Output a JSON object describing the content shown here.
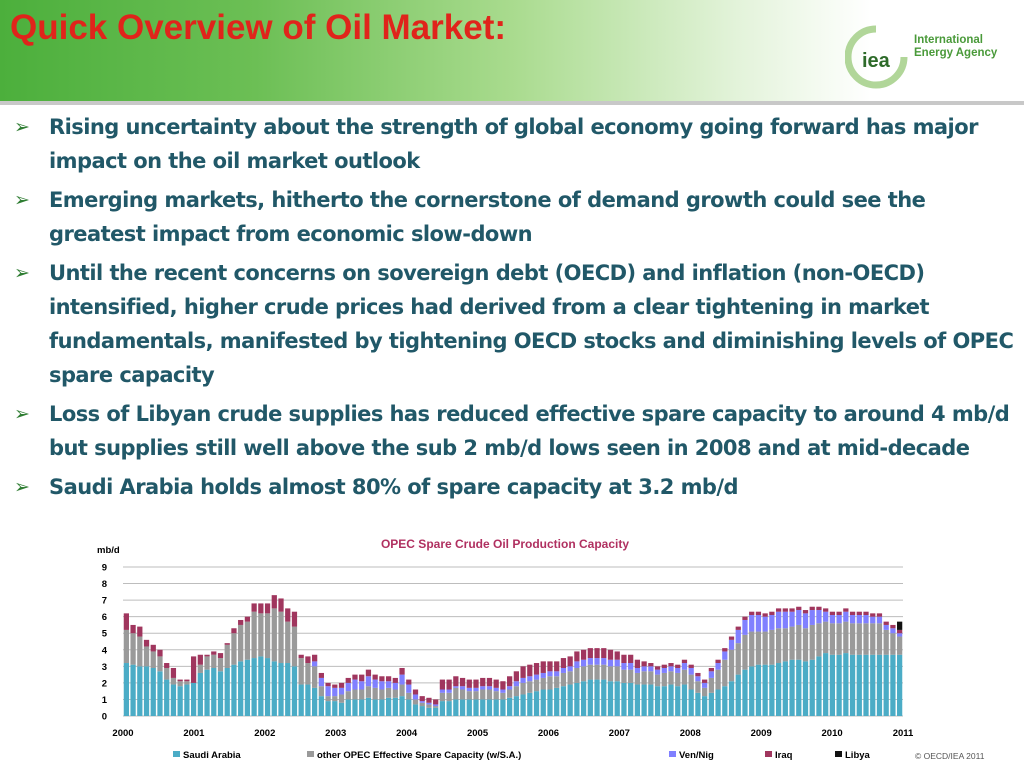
{
  "slide": {
    "title": "Quick Overview of Oil Market:",
    "logo_name": "International Energy Agency",
    "logo_line1": "International",
    "logo_line2": "Energy Agency",
    "logo_mark": "iea",
    "copyright": "© OECD/IEA 2011",
    "bullets": [
      {
        "icon": "arrow-bullet-icon",
        "text": "Rising uncertainty about the strength of global economy going forward has major impact on the oil market outlook"
      },
      {
        "icon": "arrow-bullet-icon",
        "text": "Emerging markets, hitherto the cornerstone of demand growth could see the greatest impact from economic slow-down"
      },
      {
        "icon": "arrow-bullet-icon",
        "text": "Until the recent concerns on sovereign debt (OECD) and inflation (non-OECD) intensified, higher crude prices had derived from a clear tightening in market fundamentals, manifested by tightening OECD stocks and diminishing levels of OPEC spare capacity"
      },
      {
        "icon": "arrow-bullet-icon",
        "text": "Loss of Libyan crude supplies has reduced effective spare capacity to around 4 mb/d but supplies still well above the sub 2 mb/d lows seen in 2008 and at mid-decade"
      },
      {
        "icon": "arrow-bullet-icon",
        "text": "Saudi Arabia holds almost 80% of spare capacity at 3.2 mb/d"
      }
    ]
  },
  "chart_data": {
    "type": "bar",
    "stacked": true,
    "title": "OPEC Spare Crude Oil Production Capacity",
    "ylabel": "mb/d",
    "ylim": [
      0,
      9
    ],
    "yticks": [
      "0",
      "1",
      "2",
      "3",
      "4",
      "5",
      "6",
      "7",
      "8",
      "9"
    ],
    "x_tick_labels": [
      "2000",
      "2001",
      "2002",
      "2003",
      "2004",
      "2005",
      "2006",
      "2007",
      "2008",
      "2009",
      "2010",
      "2011"
    ],
    "grid": true,
    "legend_position": "bottom",
    "colors": {
      "Saudi Arabia": "#4bacc6",
      "other OPEC Effective Spare Capacity (w/S.A.)": "#9a9a9a",
      "Ven/Nig": "#8080ff",
      "Iraq": "#a0365e",
      "Libya": "#111111"
    },
    "series": [
      {
        "name": "Saudi Arabia",
        "values": [
          3.2,
          3.1,
          3.0,
          3.0,
          2.9,
          2.7,
          2.2,
          1.9,
          1.8,
          1.9,
          2.0,
          2.6,
          2.8,
          2.9,
          2.7,
          2.9,
          3.1,
          3.3,
          3.4,
          3.5,
          3.6,
          3.5,
          3.3,
          3.2,
          3.2,
          3.0,
          1.9,
          1.9,
          1.7,
          1.2,
          0.9,
          0.9,
          0.8,
          1.0,
          1.0,
          1.0,
          1.1,
          1.0,
          1.0,
          1.1,
          1.1,
          1.2,
          1.0,
          0.7,
          0.6,
          0.5,
          0.5,
          0.9,
          0.9,
          1.0,
          1.0,
          1.0,
          1.0,
          1.0,
          1.0,
          1.0,
          1.0,
          1.1,
          1.2,
          1.3,
          1.4,
          1.5,
          1.6,
          1.6,
          1.7,
          1.8,
          1.9,
          2.0,
          2.1,
          2.2,
          2.2,
          2.2,
          2.1,
          2.1,
          2.0,
          2.0,
          1.9,
          1.9,
          1.9,
          1.8,
          1.8,
          1.9,
          1.8,
          1.9,
          1.6,
          1.4,
          1.2,
          1.4,
          1.6,
          1.8,
          2.1,
          2.5,
          2.8,
          3.0,
          3.1,
          3.1,
          3.1,
          3.2,
          3.3,
          3.4,
          3.4,
          3.3,
          3.4,
          3.6,
          3.8,
          3.7,
          3.7,
          3.8,
          3.7,
          3.7,
          3.7,
          3.7,
          3.7,
          3.7,
          3.7,
          3.7
        ]
      },
      {
        "name": "other OPEC Effective Spare Capacity (w/S.A.)",
        "values": [
          2.0,
          1.9,
          1.8,
          1.2,
          1.0,
          0.9,
          0.7,
          0.4,
          0.3,
          0.2,
          0.0,
          0.5,
          0.8,
          0.8,
          0.8,
          1.4,
          1.9,
          2.2,
          2.3,
          2.8,
          2.6,
          2.7,
          3.2,
          3.1,
          2.5,
          2.4,
          1.6,
          1.3,
          1.3,
          0.6,
          0.3,
          0.3,
          0.5,
          0.5,
          0.6,
          0.6,
          0.7,
          0.7,
          0.6,
          0.6,
          0.5,
          0.7,
          0.4,
          0.3,
          0.2,
          0.2,
          0.1,
          0.5,
          0.5,
          0.7,
          0.6,
          0.5,
          0.5,
          0.6,
          0.6,
          0.5,
          0.4,
          0.5,
          0.6,
          0.7,
          0.7,
          0.7,
          0.7,
          0.8,
          0.7,
          0.8,
          0.8,
          0.9,
          0.9,
          0.9,
          0.9,
          0.9,
          0.9,
          0.9,
          0.8,
          0.8,
          0.7,
          0.8,
          0.8,
          0.7,
          0.8,
          0.8,
          0.8,
          0.9,
          0.9,
          0.7,
          0.5,
          0.9,
          1.2,
          1.6,
          1.9,
          1.9,
          2.1,
          2.1,
          2.0,
          2.0,
          2.1,
          2.1,
          2.0,
          2.0,
          2.1,
          2.0,
          2.1,
          2.0,
          1.9,
          1.9,
          1.9,
          1.9,
          1.9,
          1.9,
          1.9,
          1.9,
          1.9,
          1.5,
          1.3,
          1.1
        ]
      },
      {
        "name": "Ven/Nig",
        "values": [
          0,
          0,
          0,
          0,
          0,
          0,
          0,
          0,
          0,
          0,
          0,
          0,
          0,
          0,
          0,
          0,
          0,
          0,
          0,
          0,
          0,
          0,
          0,
          0,
          0,
          0,
          0,
          0,
          0.3,
          0.5,
          0.6,
          0.5,
          0.4,
          0.5,
          0.6,
          0.5,
          0.6,
          0.5,
          0.5,
          0.4,
          0.4,
          0.6,
          0.5,
          0.3,
          0.1,
          0.1,
          0.1,
          0.2,
          0.2,
          0.1,
          0.2,
          0.2,
          0.2,
          0.2,
          0.2,
          0.2,
          0.2,
          0.2,
          0.3,
          0.3,
          0.3,
          0.3,
          0.3,
          0.3,
          0.3,
          0.3,
          0.3,
          0.4,
          0.4,
          0.4,
          0.4,
          0.4,
          0.4,
          0.4,
          0.4,
          0.4,
          0.3,
          0.3,
          0.3,
          0.3,
          0.3,
          0.3,
          0.3,
          0.4,
          0.4,
          0.3,
          0.3,
          0.4,
          0.4,
          0.5,
          0.6,
          0.8,
          0.9,
          1.0,
          1.0,
          0.9,
          0.9,
          1.0,
          1.0,
          0.9,
          0.9,
          0.9,
          0.9,
          0.8,
          0.6,
          0.5,
          0.5,
          0.6,
          0.5,
          0.5,
          0.5,
          0.4,
          0.4,
          0.3,
          0.3,
          0.2
        ]
      },
      {
        "name": "Iraq",
        "values": [
          1.0,
          0.5,
          0.6,
          0.4,
          0.4,
          0.4,
          0.3,
          0.6,
          0.1,
          0.1,
          1.6,
          0.6,
          0.1,
          0.2,
          0.3,
          0.1,
          0.3,
          0.3,
          0.3,
          0.5,
          0.6,
          0.6,
          0.8,
          0.8,
          0.8,
          0.9,
          0.2,
          0.4,
          0.4,
          0.3,
          0.2,
          0.2,
          0.3,
          0.3,
          0.3,
          0.4,
          0.4,
          0.3,
          0.3,
          0.3,
          0.3,
          0.4,
          0.3,
          0.3,
          0.3,
          0.3,
          0.3,
          0.6,
          0.6,
          0.6,
          0.5,
          0.5,
          0.5,
          0.5,
          0.5,
          0.5,
          0.5,
          0.6,
          0.6,
          0.7,
          0.7,
          0.7,
          0.7,
          0.6,
          0.6,
          0.6,
          0.6,
          0.6,
          0.6,
          0.6,
          0.6,
          0.6,
          0.6,
          0.5,
          0.5,
          0.5,
          0.5,
          0.3,
          0.2,
          0.2,
          0.2,
          0.2,
          0.2,
          0.2,
          0.2,
          0.2,
          0.2,
          0.2,
          0.2,
          0.2,
          0.2,
          0.2,
          0.2,
          0.2,
          0.2,
          0.2,
          0.2,
          0.2,
          0.2,
          0.2,
          0.2,
          0.2,
          0.2,
          0.2,
          0.2,
          0.2,
          0.2,
          0.2,
          0.2,
          0.2,
          0.2,
          0.2,
          0.2,
          0.2,
          0.2,
          0.2
        ]
      },
      {
        "name": "Libya",
        "values": [
          0,
          0,
          0,
          0,
          0,
          0,
          0,
          0,
          0,
          0,
          0,
          0,
          0,
          0,
          0,
          0,
          0,
          0,
          0,
          0,
          0,
          0,
          0,
          0,
          0,
          0,
          0,
          0,
          0,
          0,
          0,
          0,
          0,
          0,
          0,
          0,
          0,
          0,
          0,
          0,
          0,
          0,
          0,
          0,
          0,
          0,
          0,
          0,
          0,
          0,
          0,
          0,
          0,
          0,
          0,
          0,
          0,
          0,
          0,
          0,
          0,
          0,
          0,
          0,
          0,
          0,
          0,
          0,
          0,
          0,
          0,
          0,
          0,
          0,
          0,
          0,
          0,
          0,
          0,
          0,
          0,
          0,
          0,
          0,
          0,
          0,
          0,
          0,
          0,
          0,
          0,
          0,
          0,
          0,
          0,
          0,
          0,
          0,
          0,
          0,
          0,
          0,
          0,
          0,
          0,
          0,
          0,
          0,
          0,
          0,
          0,
          0,
          0,
          0,
          0,
          0.5
        ]
      }
    ]
  }
}
